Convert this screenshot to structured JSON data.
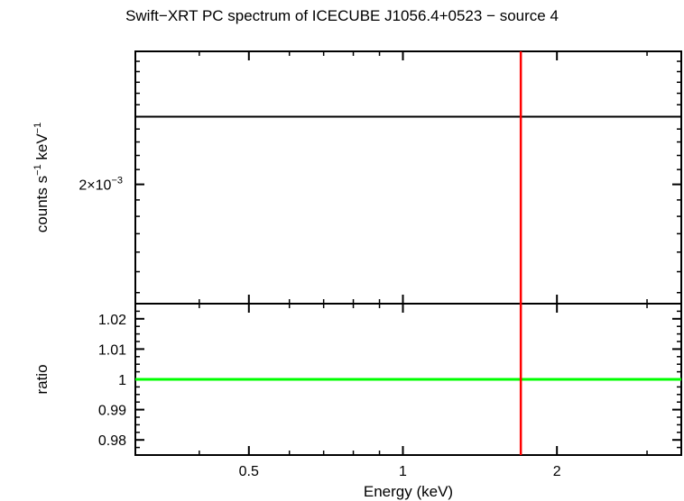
{
  "chart_data": [
    {
      "type": "line",
      "panel": "spectrum",
      "title": "Swift−XRT PC spectrum of ICECUBE J1056.4+0523 − source 4",
      "ylabel_main": "counts s",
      "ylabel_sup1": "−1",
      "ylabel_mid": " keV",
      "ylabel_sup2": "−1",
      "yscale": "log",
      "xscale": "log",
      "xlim": [
        0.3,
        3.5
      ],
      "ylim": [
        0.00135,
        0.0031
      ],
      "yticks": [
        {
          "value": 0.002,
          "mantissa": "2×10",
          "exp": "−3"
        }
      ],
      "series": [
        {
          "color": "#000000",
          "x": [
            0.3,
            3.5
          ],
          "y": [
            0.0025,
            0.0025
          ]
        }
      ],
      "vline": {
        "x": 1.7,
        "color": "#ff0000"
      }
    },
    {
      "type": "line",
      "panel": "ratio",
      "ylabel": "ratio",
      "xlabel": "Energy (keV)",
      "xscale": "log",
      "xlim": [
        0.3,
        3.5
      ],
      "ylim": [
        0.975,
        1.025
      ],
      "yticks": [
        "0.98",
        "0.99",
        "1",
        "1.01",
        "1.02"
      ],
      "xticks": [
        "0.5",
        "1",
        "2"
      ],
      "series": [
        {
          "color": "#00ff00",
          "x": [
            0.3,
            3.5
          ],
          "y": [
            1,
            1
          ]
        }
      ],
      "vline": {
        "x": 1.7,
        "color": "#ff0000"
      }
    }
  ]
}
